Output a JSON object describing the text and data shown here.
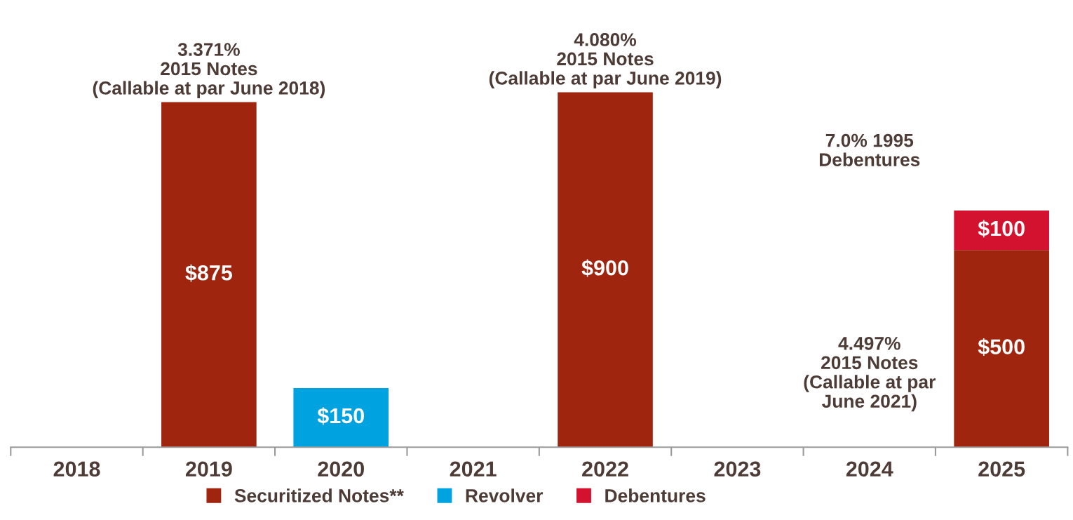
{
  "chart_data": {
    "type": "bar",
    "stacked": true,
    "categories": [
      "2018",
      "2019",
      "2020",
      "2021",
      "2022",
      "2023",
      "2024",
      "2025"
    ],
    "series": [
      {
        "name": "Securitized Notes**",
        "color": "#a0250f",
        "values": [
          null,
          875,
          null,
          null,
          900,
          null,
          null,
          500
        ],
        "value_labels": [
          null,
          "$875",
          null,
          null,
          "$900",
          null,
          null,
          "$500"
        ]
      },
      {
        "name": "Revolver",
        "color": "#00a3e0",
        "values": [
          null,
          null,
          150,
          null,
          null,
          null,
          null,
          null
        ],
        "value_labels": [
          null,
          null,
          "$150",
          null,
          null,
          null,
          null,
          null
        ]
      },
      {
        "name": "Debentures",
        "color": "#d2122e",
        "values": [
          null,
          null,
          null,
          null,
          null,
          null,
          null,
          100
        ],
        "value_labels": [
          null,
          null,
          null,
          null,
          null,
          null,
          null,
          "$100"
        ]
      }
    ],
    "annotations": [
      {
        "text": "3.371%\n2015 Notes\n(Callable at par June 2018)",
        "x": "2019",
        "y": 875
      },
      {
        "text": "4.080%\n2015 Notes\n(Callable at par June 2019)",
        "x": "2022",
        "y": 900
      },
      "7.0% 1995\nDebentures",
      "4.497%\n2015 Notes\n(Callable at par\nJune 2021)"
    ],
    "legend": "bottom"
  }
}
